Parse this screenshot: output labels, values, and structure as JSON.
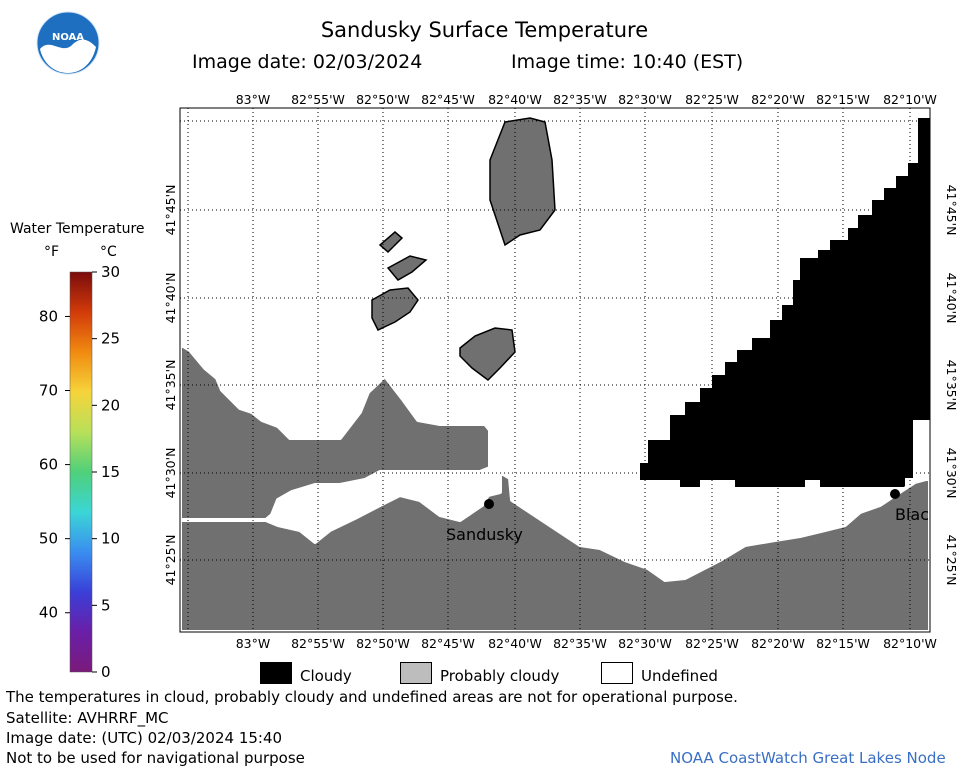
{
  "header": {
    "title": "Sandusky Surface Temperature",
    "image_date": "Image date: 02/03/2024",
    "image_time": "Image time: 10:40 (EST)"
  },
  "logo": {
    "text": "NOAA",
    "icon": "noaa-logo"
  },
  "scale": {
    "title": "Water Temperature",
    "unit_f": "°F",
    "unit_c": "°C",
    "f_ticks": [
      "80",
      "70",
      "60",
      "50",
      "40"
    ],
    "c_ticks": [
      "30",
      "25",
      "20",
      "15",
      "10",
      "5",
      "0"
    ],
    "f_values": [
      80,
      70,
      60,
      50,
      40
    ],
    "c_values": [
      30,
      25,
      20,
      15,
      10,
      5,
      0
    ],
    "colors": [
      "#7a0c0c",
      "#d23a0a",
      "#f08a10",
      "#f6d43a",
      "#b8e05a",
      "#4fd07a",
      "#3bd6d6",
      "#3a8ef0",
      "#3a3fd8",
      "#6a1fa8",
      "#7a1a7a"
    ]
  },
  "map": {
    "lon_labels": [
      "83°W",
      "82°55'W",
      "82°50'W",
      "82°45'W",
      "82°40'W",
      "82°35'W",
      "82°30'W",
      "82°25'W",
      "82°20'W",
      "82°15'W",
      "82°10'W"
    ],
    "lat_labels": [
      "41°45'N",
      "41°40'N",
      "41°35'N",
      "41°30'N",
      "41°25'N"
    ],
    "places": [
      {
        "name": "Sandusky"
      },
      {
        "name": "Blac"
      }
    ],
    "colors": {
      "land": "#707070",
      "cloud": "#000000",
      "water": "#ffffff"
    }
  },
  "legend": {
    "items": [
      {
        "label": "Cloudy",
        "color": "#000000"
      },
      {
        "label": "Probably cloudy",
        "color": "#bdbdbd"
      },
      {
        "label": "Undefined",
        "color": "#ffffff"
      }
    ]
  },
  "footer": {
    "disclaimer": "The temperatures in cloud, probably cloudy and undefined areas are not for operational purpose.",
    "satellite": "Satellite: AVHRRF_MC",
    "utc_date": "Image date: (UTC) 02/03/2024  15:40",
    "nav_warning": "Not to be used for navigational purpose",
    "credit": "NOAA CoastWatch Great Lakes Node"
  }
}
